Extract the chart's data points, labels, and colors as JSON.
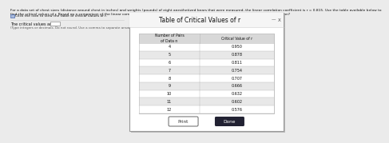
{
  "title_line1": "For a data set of chest sizes (distance around chest in inches) and weights (pounds) of eight anesthetized bears that were measured, the linear correlation coefficient is r = 0.815. Use the table available below to",
  "title_line2": "find the critical values of r. Based on a comparison of the linear correlation coefficient r and the critical values, what do you conclude about a linear correlation?",
  "icon_line": "Click the icon to view the table of critical values of r.",
  "answer_label": "The critical values are",
  "answer_hint": "(Type integers or decimals. Do not round. Use a comma to separate answers as needed.)",
  "popup_title": "Table of Critical Values of r",
  "col1_header_line1": "Number of Pairs",
  "col1_header_line2": "of Data n",
  "col2_header": "Critical Value of r",
  "n_values": [
    "4",
    "5",
    "6",
    "7",
    "8",
    "9",
    "10",
    "11",
    "12"
  ],
  "r_values": [
    "0.950",
    "0.878",
    "0.811",
    "0.754",
    "0.707",
    "0.666",
    "0.632",
    "0.602",
    "0.576"
  ],
  "print_btn": "Print",
  "done_btn": "Done",
  "bg_color": "#ebebeb",
  "popup_bg": "#ffffff",
  "popup_border": "#999999",
  "popup_title_bar_bg": "#f5f5f5",
  "table_outer_bg": "#e8e8e8",
  "table_inner_bg": "#ffffff",
  "table_header_bg": "#d8d8d8",
  "table_border": "#bbbbbb",
  "done_btn_bg": "#222233",
  "done_btn_fg": "#ffffff",
  "print_btn_bg": "#ffffff",
  "text_color": "#111111"
}
